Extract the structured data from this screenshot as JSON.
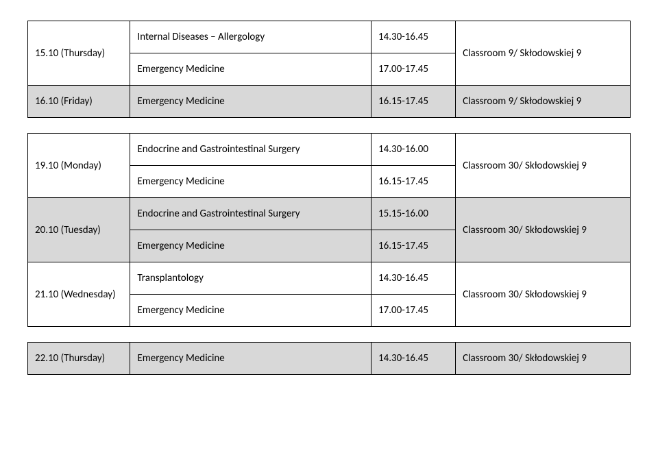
{
  "rows": [
    {
      "date": "15.10 (Thursday)",
      "shaded": false,
      "courses": [
        {
          "name": "Internal Diseases – Allergology",
          "time": "14.30-16.45"
        },
        {
          "name": "Emergency Medicine",
          "time": "17.00-17.45"
        }
      ],
      "room": "Classroom 9/ Skłodowskiej 9"
    },
    {
      "date": "16.10 (Friday)",
      "shaded": true,
      "courses": [
        {
          "name": "Emergency Medicine",
          "time": "16.15-17.45"
        }
      ],
      "room": "Classroom 9/ Skłodowskiej 9"
    },
    {
      "date": "19.10 (Monday)",
      "shaded": false,
      "courses": [
        {
          "name": "Endocrine and Gastrointestinal Surgery",
          "time": "14.30-16.00"
        },
        {
          "name": "Emergency Medicine",
          "time": "16.15-17.45"
        }
      ],
      "room": "Classroom 30/ Skłodowskiej 9",
      "gap_before": true
    },
    {
      "date": "20.10 (Tuesday)",
      "shaded": true,
      "courses": [
        {
          "name": "Endocrine and Gastrointestinal Surgery",
          "time": "15.15-16.00"
        },
        {
          "name": "Emergency Medicine",
          "time": "16.15-17.45"
        }
      ],
      "room": "Classroom 30/ Skłodowskiej 9"
    },
    {
      "date": "21.10 (Wednesday)",
      "shaded": false,
      "courses": [
        {
          "name": "Transplantology",
          "time": "14.30-16.45"
        },
        {
          "name": "Emergency Medicine",
          "time": "17.00-17.45"
        }
      ],
      "room": "Classroom 30/ Skłodowskiej 9"
    },
    {
      "date": "22.10 (Thursday)",
      "shaded": true,
      "courses": [
        {
          "name": "Emergency Medicine",
          "time": "14.30-16.45"
        }
      ],
      "room": "Classroom 30/ Skłodowskiej 9",
      "gap_before": true
    }
  ]
}
